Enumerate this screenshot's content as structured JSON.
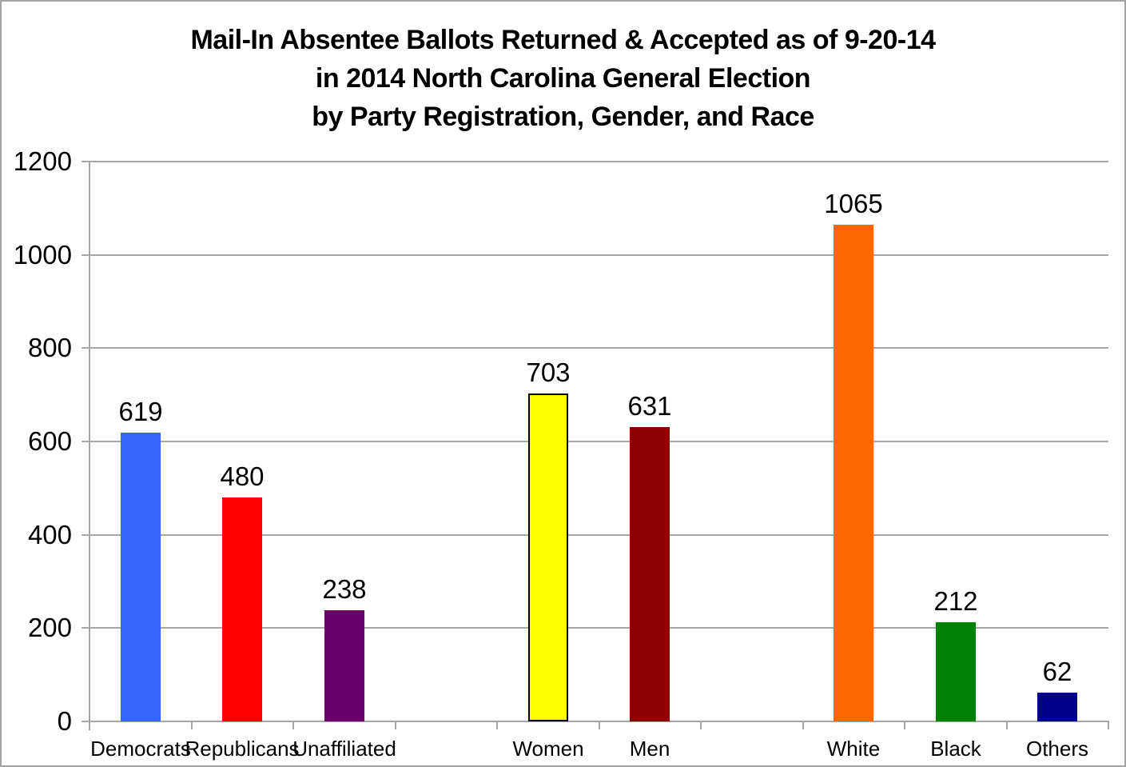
{
  "title": {
    "line1": "Mail-In Absentee Ballots Returned & Accepted as of 9-20-14",
    "line2": "in 2014 North Carolina General Election",
    "line3": "by Party Registration, Gender, and Race"
  },
  "chart_data": {
    "type": "bar",
    "title": "Mail-In Absentee Ballots Returned & Accepted as of 9-20-14 in 2014 North Carolina General Election by Party Registration, Gender, and Race",
    "categories": [
      "Democrats",
      "Republicans",
      "Unaffiliated",
      "",
      "Women",
      "Men",
      "",
      "White",
      "Black",
      "Others"
    ],
    "values": [
      619,
      480,
      238,
      null,
      703,
      631,
      null,
      1065,
      212,
      62
    ],
    "bar_colors": [
      "#3366fa",
      "#ff0000",
      "#6a006a",
      null,
      "#ffff00",
      "#8b0000",
      null,
      "#ff6600",
      "#008000",
      "#00008b"
    ],
    "bar_border_colors": [
      null,
      null,
      null,
      null,
      "#000000",
      null,
      null,
      null,
      null,
      null
    ],
    "data_labels": [
      "619",
      "480",
      "238",
      "",
      "703",
      "631",
      "",
      "1065",
      "212",
      "62"
    ],
    "xlabel": "",
    "ylabel": "",
    "ylim": [
      0,
      1200
    ],
    "yticks": [
      0,
      200,
      400,
      600,
      800,
      1000,
      1200
    ],
    "ytick_labels": [
      "0",
      "200",
      "400",
      "600",
      "800",
      "1000",
      "1200"
    ],
    "grid": true,
    "legend": false,
    "axis_color": "#a6a6a6",
    "text_color": "#000000"
  }
}
